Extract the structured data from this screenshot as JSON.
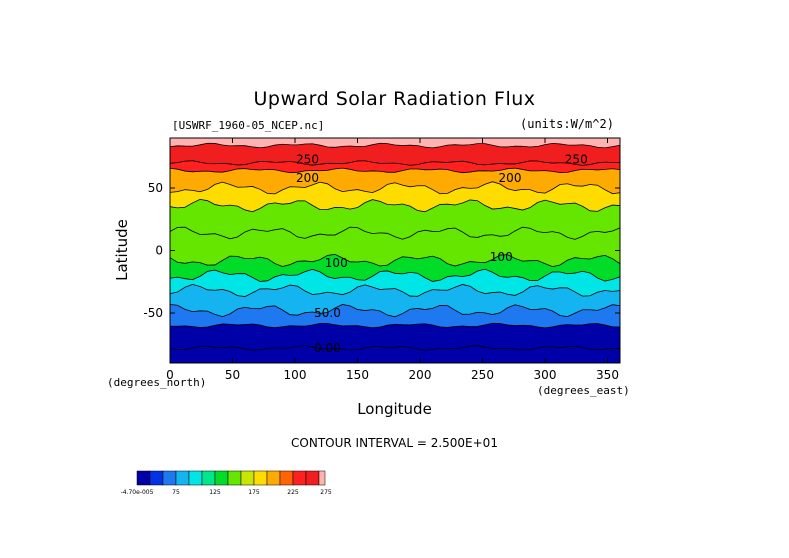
{
  "chart_data": {
    "type": "heatmap",
    "title": "Upward Solar Radiation Flux",
    "file_label": "[USWRF_1960-05_NCEP.nc]",
    "units_label": "(units:W/m^2)",
    "xlabel": "Longitude",
    "ylabel": "Latitude",
    "x_units": "(degrees_east)",
    "y_units": "(degrees_north)",
    "xlim": [
      0,
      360
    ],
    "ylim": [
      -90,
      90
    ],
    "x_ticks": [
      "0",
      "50",
      "100",
      "150",
      "200",
      "250",
      "300",
      "350"
    ],
    "y_ticks": [
      "50",
      "0",
      "-50"
    ],
    "contour_note": "CONTOUR INTERVAL = 2.500E+01",
    "contour_labels": [
      {
        "text": "250",
        "lon": 110,
        "lat": 73
      },
      {
        "text": "250",
        "lon": 325,
        "lat": 73
      },
      {
        "text": "200",
        "lon": 110,
        "lat": 58
      },
      {
        "text": "200",
        "lon": 272,
        "lat": 58
      },
      {
        "text": "100",
        "lon": 133,
        "lat": -10
      },
      {
        "text": "100",
        "lon": 265,
        "lat": -5
      },
      {
        "text": "50.0",
        "lon": 126,
        "lat": -50
      },
      {
        "text": "0.00",
        "lon": 126,
        "lat": -78
      }
    ],
    "latitude_bands": [
      {
        "lat_top": 90,
        "lat_bottom": 84,
        "level": 250
      },
      {
        "lat_top": 84,
        "lat_bottom": 70,
        "level": 245
      },
      {
        "lat_top": 70,
        "lat_bottom": 64,
        "level": 215
      },
      {
        "lat_top": 64,
        "lat_bottom": 50,
        "level": 185
      },
      {
        "lat_top": 50,
        "lat_bottom": 36,
        "level": 160
      },
      {
        "lat_top": 36,
        "lat_bottom": 14,
        "level": 135
      },
      {
        "lat_top": 14,
        "lat_bottom": -8,
        "level": 120
      },
      {
        "lat_top": -8,
        "lat_bottom": -20,
        "level": 100
      },
      {
        "lat_top": -20,
        "lat_bottom": -32,
        "level": 80
      },
      {
        "lat_top": -32,
        "lat_bottom": -48,
        "level": 55
      },
      {
        "lat_top": -48,
        "lat_bottom": -60,
        "level": 25
      },
      {
        "lat_top": -60,
        "lat_bottom": -78,
        "level": 5
      },
      {
        "lat_top": -78,
        "lat_bottom": -90,
        "level": -10
      }
    ],
    "colorbar": {
      "colors": [
        "#0000a8",
        "#0033e6",
        "#1e78f0",
        "#14b4f0",
        "#00e6e6",
        "#00e68c",
        "#00dc28",
        "#64e600",
        "#c8e600",
        "#ffdc00",
        "#ffaa00",
        "#ff6400",
        "#ff2020",
        "#f01e1e",
        "#ffb4b4"
      ],
      "labels": [
        "-4.70e-005",
        "75",
        "125",
        "175",
        "225",
        "275"
      ],
      "level_min": -12.5,
      "level_step": 18.75
    }
  }
}
